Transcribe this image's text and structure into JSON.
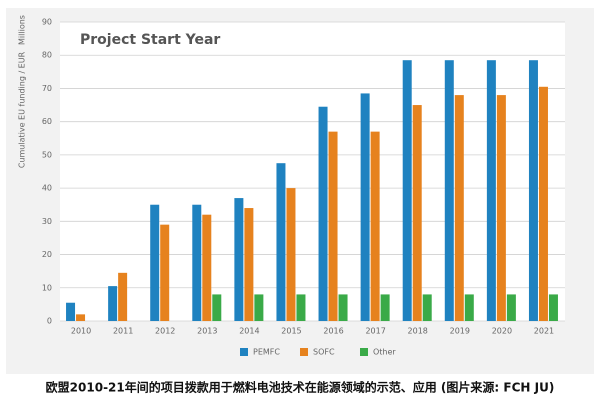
{
  "chart_data": {
    "type": "bar",
    "title": "Project Start Year",
    "y_label": "Cumulative EU funding / EUR",
    "y_unit": "Millions",
    "categories": [
      "2010",
      "2011",
      "2012",
      "2013",
      "2014",
      "2015",
      "2016",
      "2017",
      "2018",
      "2019",
      "2020",
      "2021"
    ],
    "series": [
      {
        "name": "PEMFC",
        "color": "#1f82c0",
        "values": [
          5.5,
          10.5,
          35,
          35,
          37,
          47.5,
          64.5,
          68.5,
          78.5,
          78.5,
          78.5,
          78.5
        ]
      },
      {
        "name": "SOFC",
        "color": "#e6821e",
        "values": [
          2,
          14.5,
          29,
          32,
          34,
          40,
          57,
          57,
          65,
          68,
          68,
          70.5
        ]
      },
      {
        "name": "Other",
        "color": "#3aaa48",
        "values": [
          0,
          0,
          0,
          8,
          8,
          8,
          8,
          8,
          8,
          8,
          8,
          8
        ]
      }
    ],
    "ylim": [
      0,
      90
    ],
    "yticks": [
      0,
      10,
      20,
      30,
      40,
      50,
      60,
      70,
      80,
      90
    ],
    "grid": true,
    "legend": "bottom",
    "caption": "欧盟2010-21年间的项目拨款用于燃料电池技术在能源领域的示范、应用 (图片来源: FCH JU)"
  }
}
